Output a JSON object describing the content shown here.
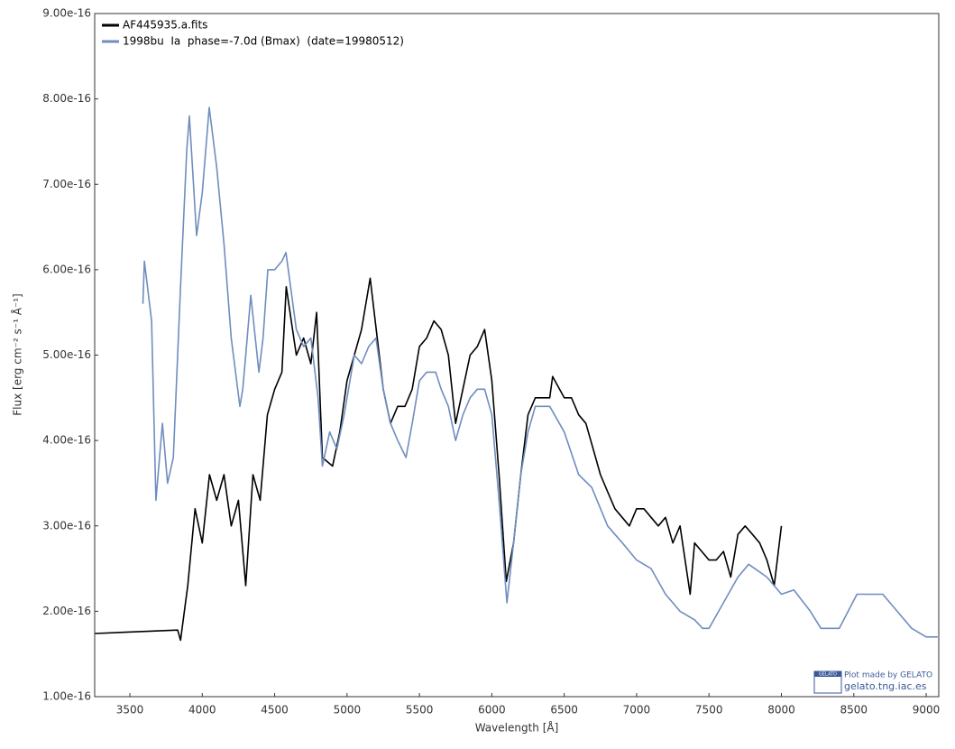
{
  "chart_data": {
    "type": "line",
    "xlabel": "Wavelength [Å]",
    "ylabel": "Flux [erg cm⁻² s⁻¹ Å⁻¹]",
    "xlim": [
      3257,
      9087
    ],
    "ylim": [
      1e-16,
      9e-16
    ],
    "xticks": [
      3500,
      4000,
      4500,
      5000,
      5500,
      6000,
      6500,
      7000,
      7500,
      8000,
      8500,
      9000
    ],
    "yticks": [
      {
        "value": 1e-16,
        "label": "1.00e-16"
      },
      {
        "value": 2e-16,
        "label": "2.00e-16"
      },
      {
        "value": 3e-16,
        "label": "3.00e-16"
      },
      {
        "value": 4e-16,
        "label": "4.00e-16"
      },
      {
        "value": 5e-16,
        "label": "5.00e-16"
      },
      {
        "value": 6e-16,
        "label": "6.00e-16"
      },
      {
        "value": 7e-16,
        "label": "7.00e-16"
      },
      {
        "value": 8e-16,
        "label": "8.00e-16"
      },
      {
        "value": 9e-16,
        "label": "9.00e-16"
      }
    ],
    "grid": false,
    "legend": "top-left",
    "annotations": [
      "GELATO",
      "Plot made by GELATO",
      "gelato.tng.iac.es"
    ],
    "series": [
      {
        "name": "AF445935.a.fits",
        "color": "#000000",
        "x": [
          3260,
          3830,
          3850,
          3900,
          3950,
          4000,
          4050,
          4100,
          4150,
          4200,
          4250,
          4300,
          4350,
          4400,
          4450,
          4500,
          4550,
          4580,
          4650,
          4700,
          4750,
          4790,
          4830,
          4900,
          4950,
          5000,
          5050,
          5100,
          5160,
          5250,
          5300,
          5350,
          5400,
          5450,
          5500,
          5550,
          5600,
          5650,
          5700,
          5750,
          5800,
          5850,
          5900,
          5950,
          6000,
          6050,
          6100,
          6150,
          6200,
          6250,
          6300,
          6350,
          6400,
          6420,
          6500,
          6550,
          6600,
          6650,
          6700,
          6750,
          6800,
          6850,
          6900,
          6950,
          7000,
          7050,
          7100,
          7150,
          7200,
          7250,
          7300,
          7370,
          7400,
          7450,
          7500,
          7550,
          7600,
          7650,
          7700,
          7750,
          7800,
          7850,
          7900,
          7950,
          8000
        ],
        "values": [
          1.74e-16,
          1.78e-16,
          1.66e-16,
          2.3e-16,
          3.2e-16,
          2.8e-16,
          3.6e-16,
          3.3e-16,
          3.6e-16,
          3e-16,
          3.3e-16,
          2.3e-16,
          3.6e-16,
          3.3e-16,
          4.3e-16,
          4.6e-16,
          4.8e-16,
          5.8e-16,
          5e-16,
          5.2e-16,
          4.9e-16,
          5.5e-16,
          3.8e-16,
          3.7e-16,
          4.1e-16,
          4.7e-16,
          5e-16,
          5.3e-16,
          5.9e-16,
          4.6e-16,
          4.2e-16,
          4.4e-16,
          4.4e-16,
          4.6e-16,
          5.1e-16,
          5.2e-16,
          5.4e-16,
          5.3e-16,
          5e-16,
          4.2e-16,
          4.6e-16,
          5e-16,
          5.1e-16,
          5.3e-16,
          4.7e-16,
          3.6e-16,
          2.35e-16,
          2.8e-16,
          3.6e-16,
          4.3e-16,
          4.5e-16,
          4.5e-16,
          4.5e-16,
          4.75e-16,
          4.5e-16,
          4.5e-16,
          4.3e-16,
          4.2e-16,
          3.9e-16,
          3.6e-16,
          3.4e-16,
          3.2e-16,
          3.1e-16,
          3e-16,
          3.2e-16,
          3.2e-16,
          3.1e-16,
          3e-16,
          3.1e-16,
          2.8e-16,
          3e-16,
          2.2e-16,
          2.8e-16,
          2.7e-16,
          2.6e-16,
          2.6e-16,
          2.7e-16,
          2.4e-16,
          2.9e-16,
          3e-16,
          2.9e-16,
          2.8e-16,
          2.6e-16,
          2.3e-16,
          3e-16
        ]
      },
      {
        "name": "1998bu  Ia  phase=-7.0d (Bmax)  (date=19980512)",
        "color": "#6f8dbf",
        "x": [
          3590,
          3600,
          3650,
          3680,
          3725,
          3760,
          3800,
          3850,
          3893,
          3911,
          3961,
          4000,
          4048,
          4100,
          4150,
          4200,
          4260,
          4280,
          4300,
          4335,
          4391,
          4420,
          4453,
          4500,
          4550,
          4578,
          4650,
          4700,
          4750,
          4800,
          4830,
          4880,
          4930,
          4980,
          5050,
          5100,
          5150,
          5200,
          5250,
          5300,
          5350,
          5407,
          5450,
          5500,
          5550,
          5612,
          5650,
          5700,
          5750,
          5800,
          5850,
          5900,
          5950,
          6000,
          6050,
          6104,
          6150,
          6200,
          6250,
          6300,
          6400,
          6500,
          6600,
          6690,
          6800,
          6902,
          7000,
          7100,
          7200,
          7300,
          7400,
          7456,
          7500,
          7600,
          7700,
          7774,
          7900,
          8000,
          8086,
          8200,
          8273,
          8400,
          8522,
          8600,
          8700,
          8800,
          8900,
          9000,
          9080
        ],
        "values": [
          5.6e-16,
          6.1e-16,
          5.4e-16,
          3.3e-16,
          4.2e-16,
          3.5e-16,
          3.8e-16,
          5.8e-16,
          7.4e-16,
          7.8e-16,
          6.4e-16,
          6.9e-16,
          7.9e-16,
          7.2e-16,
          6.3e-16,
          5.2e-16,
          4.4e-16,
          4.6e-16,
          5e-16,
          5.7e-16,
          4.8e-16,
          5.2e-16,
          6e-16,
          6e-16,
          6.1e-16,
          6.2e-16,
          5.3e-16,
          5.1e-16,
          5.2e-16,
          4.5e-16,
          3.7e-16,
          4.1e-16,
          3.9e-16,
          4.3e-16,
          5e-16,
          4.9e-16,
          5.1e-16,
          5.2e-16,
          4.6e-16,
          4.2e-16,
          4e-16,
          3.8e-16,
          4.2e-16,
          4.7e-16,
          4.8e-16,
          4.8e-16,
          4.6e-16,
          4.4e-16,
          4e-16,
          4.3e-16,
          4.5e-16,
          4.6e-16,
          4.6e-16,
          4.3e-16,
          3.3e-16,
          2.1e-16,
          2.8e-16,
          3.6e-16,
          4.1e-16,
          4.4e-16,
          4.4e-16,
          4.1e-16,
          3.6e-16,
          3.45e-16,
          3e-16,
          2.8e-16,
          2.6e-16,
          2.5e-16,
          2.2e-16,
          2e-16,
          1.9e-16,
          1.8e-16,
          1.8e-16,
          2.1e-16,
          2.4e-16,
          2.55e-16,
          2.4e-16,
          2.2e-16,
          2.25e-16,
          2e-16,
          1.8e-16,
          1.8e-16,
          2.2e-16,
          2.2e-16,
          2.2e-16,
          2e-16,
          1.8e-16,
          1.7e-16,
          1.7e-16
        ]
      }
    ]
  }
}
